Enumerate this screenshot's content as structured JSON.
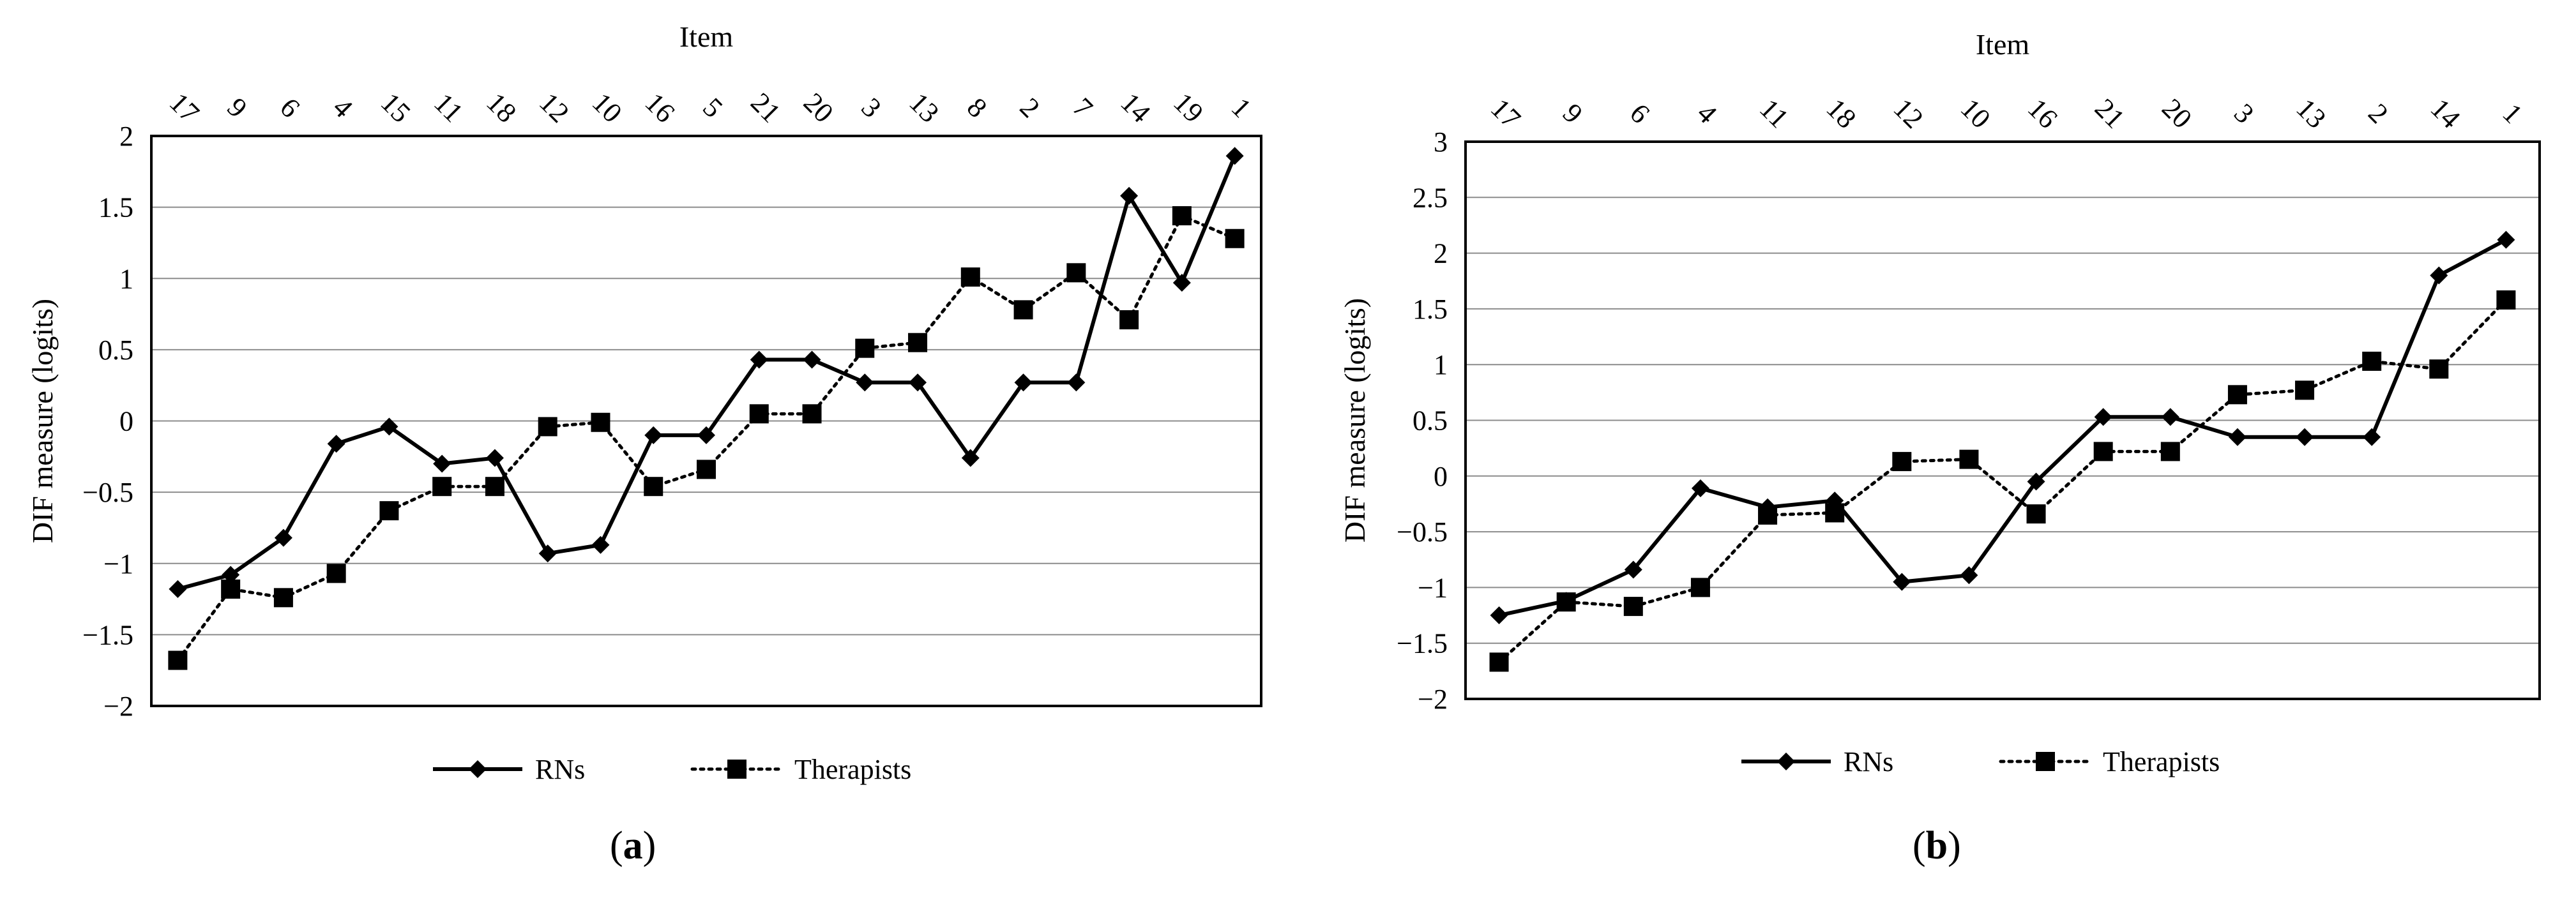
{
  "chart_data": [
    {
      "type": "line",
      "panel_label": "a",
      "xlabel": "Item",
      "ylabel": "DIF measure (logits)",
      "categories": [
        "17",
        "9",
        "6",
        "4",
        "15",
        "11",
        "18",
        "12",
        "10",
        "16",
        "5",
        "21",
        "20",
        "3",
        "13",
        "8",
        "2",
        "7",
        "14",
        "19",
        "1"
      ],
      "ylim": [
        -2,
        2
      ],
      "yticks": [
        -2,
        -1.5,
        -1,
        -0.5,
        0,
        0.5,
        1,
        1.5,
        2
      ],
      "ytick_labels": [
        "−2",
        "−1.5",
        "−1",
        "−0.5",
        "0",
        "0.5",
        "1",
        "1.5",
        "2"
      ],
      "grid": "horizontal",
      "legend": "bottom",
      "series": [
        {
          "name": "RNs",
          "style": "solid",
          "marker": "diamond",
          "values": [
            -1.18,
            -1.08,
            -0.82,
            -0.16,
            -0.04,
            -0.3,
            -0.26,
            -0.93,
            -0.87,
            -0.1,
            -0.1,
            0.43,
            0.43,
            0.27,
            0.27,
            -0.26,
            0.27,
            0.27,
            1.58,
            0.97,
            1.86
          ]
        },
        {
          "name": "Therapists",
          "style": "dotted",
          "marker": "square",
          "values": [
            -1.68,
            -1.18,
            -1.24,
            -1.07,
            -0.63,
            -0.46,
            -0.46,
            -0.04,
            -0.01,
            -0.46,
            -0.34,
            0.05,
            0.05,
            0.51,
            0.55,
            1.01,
            0.78,
            1.04,
            0.71,
            1.44,
            1.28
          ]
        }
      ]
    },
    {
      "type": "line",
      "panel_label": "b",
      "xlabel": "Item",
      "ylabel": "DIF measure (logits)",
      "categories": [
        "17",
        "9",
        "6",
        "4",
        "11",
        "18",
        "12",
        "10",
        "16",
        "21",
        "20",
        "3",
        "13",
        "2",
        "14",
        "1"
      ],
      "ylim": [
        -2,
        3
      ],
      "yticks": [
        -2,
        -1.5,
        -1,
        -0.5,
        0,
        0.5,
        1,
        1.5,
        2,
        2.5,
        3
      ],
      "ytick_labels": [
        "−2",
        "−1.5",
        "−1",
        "−0.5",
        "0",
        "0.5",
        "1",
        "1.5",
        "2",
        "2.5",
        "3"
      ],
      "grid": "horizontal",
      "legend": "bottom",
      "series": [
        {
          "name": "RNs",
          "style": "solid",
          "marker": "diamond",
          "values": [
            -1.25,
            -1.12,
            -0.84,
            -0.11,
            -0.28,
            -0.22,
            -0.95,
            -0.89,
            -0.05,
            0.53,
            0.53,
            0.35,
            0.35,
            0.35,
            1.8,
            2.12
          ]
        },
        {
          "name": "Therapists",
          "style": "dotted",
          "marker": "square",
          "values": [
            -1.67,
            -1.13,
            -1.17,
            -1.0,
            -0.35,
            -0.33,
            0.13,
            0.15,
            -0.34,
            0.22,
            0.22,
            0.73,
            0.77,
            1.03,
            0.96,
            1.58
          ]
        }
      ]
    }
  ]
}
